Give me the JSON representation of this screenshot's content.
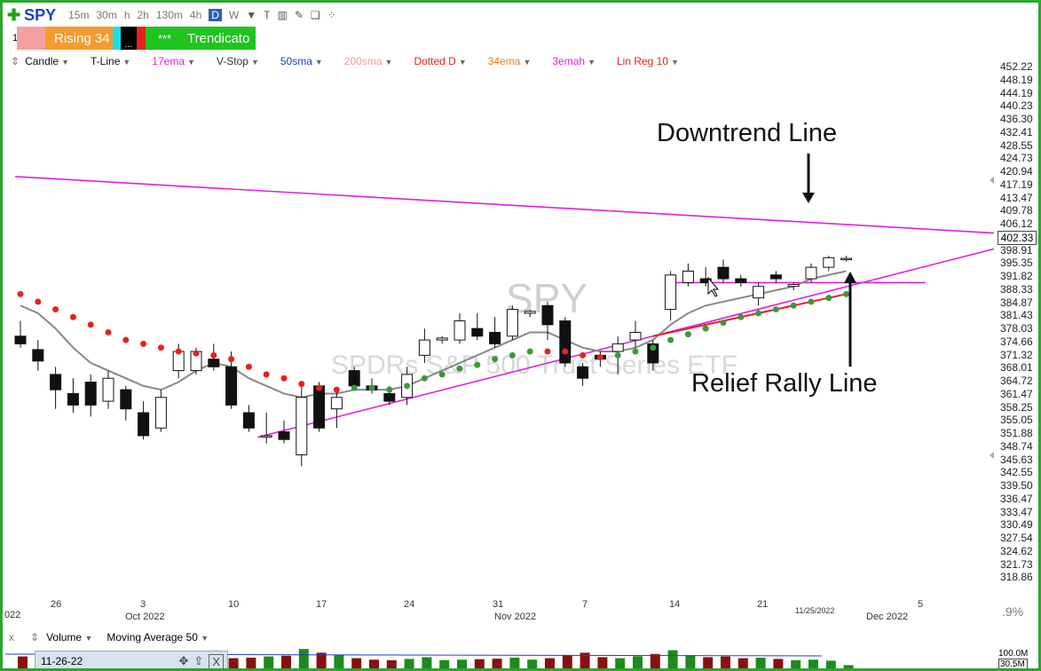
{
  "toolbar": {
    "symbol": "SPY",
    "timeframes": [
      "15m",
      "30m",
      "h",
      "2h",
      "130m",
      "4h",
      "D",
      "W"
    ],
    "active_timeframe": "D",
    "icons": [
      "chevron-down-icon",
      "text-icon",
      "bars-icon",
      "pencil-icon",
      "template-icon",
      "share-icon"
    ]
  },
  "markers": {
    "row_label": "1",
    "rising": "Rising 34",
    "dots": "...",
    "stars": "***",
    "trend": "Trendicato",
    "colors": {
      "pink": "#f4a0a0",
      "orange": "#f59a2e",
      "cyan": "#18e0e8",
      "black": "#000000",
      "red": "#e62020",
      "green": "#1fc41f"
    }
  },
  "studies": [
    {
      "label": "Candle",
      "color": "#111111"
    },
    {
      "label": "T-Line",
      "color": "#111111"
    },
    {
      "label": "17ema",
      "color": "#e020e0"
    },
    {
      "label": "V-Stop",
      "color": "#333333"
    },
    {
      "label": "50sma",
      "color": "#1a3fd0"
    },
    {
      "label": "200sma",
      "color": "#f29a9a"
    },
    {
      "label": "Dotted D",
      "color": "#e62020"
    },
    {
      "label": "34ema",
      "color": "#f08010"
    },
    {
      "label": "3emah",
      "color": "#e020e0"
    },
    {
      "label": "Lin Reg 10",
      "color": "#e62020"
    }
  ],
  "price_axis": [
    "452.22",
    "448.19",
    "444.19",
    "440.23",
    "436.30",
    "432.41",
    "428.55",
    "424.73",
    "420.94",
    "417.19",
    "413.47",
    "409.78",
    "406.12",
    "402.33",
    "398.91",
    "395.35",
    "391.82",
    "388.33",
    "384.87",
    "381.43",
    "378.03",
    "374.66",
    "371.32",
    "368.01",
    "364.72",
    "361.47",
    "358.25",
    "355.05",
    "351.88",
    "348.74",
    "345.63",
    "342.55",
    "339.50",
    "336.47",
    "333.47",
    "330.49",
    "327.54",
    "324.62",
    "321.73",
    "318.86"
  ],
  "last_price": "402.33",
  "watermark": {
    "symbol": "SPY",
    "name": "SPDRs S&P 500 Trust Series ETF"
  },
  "annotations": {
    "downtrend": "Downtrend Line",
    "relief": "Relief Rally Line"
  },
  "date_axis": {
    "days": [
      "26",
      "3",
      "10",
      "17",
      "24",
      "31",
      "7",
      "14",
      "21",
      "5"
    ],
    "months": [
      "Oct 2022",
      "Nov 2022",
      "Dec 2022"
    ],
    "edge": "022",
    "cursor_date": "11/25/2022",
    "pct": ".9%"
  },
  "volume": {
    "study": "Volume",
    "ma": "Moving Average 50",
    "axis_top": "100.0M",
    "axis_value": "30.5M",
    "date_input": "11-26-22"
  },
  "chart_data": {
    "type": "candlestick",
    "symbol": "SPY",
    "ylim": [
      318.86,
      452.22
    ],
    "candles": [
      {
        "o": 382,
        "h": 386,
        "l": 379,
        "c": 380
      },
      {
        "o": 378.5,
        "h": 381,
        "l": 373,
        "c": 375.5
      },
      {
        "o": 372,
        "h": 374,
        "l": 363,
        "c": 368
      },
      {
        "o": 367,
        "h": 371,
        "l": 362,
        "c": 364
      },
      {
        "o": 370,
        "h": 372,
        "l": 361,
        "c": 364
      },
      {
        "o": 365,
        "h": 373,
        "l": 363,
        "c": 371
      },
      {
        "o": 368,
        "h": 369,
        "l": 360,
        "c": 363
      },
      {
        "o": 362,
        "h": 365,
        "l": 355,
        "c": 356
      },
      {
        "o": 358,
        "h": 368,
        "l": 357,
        "c": 366
      },
      {
        "o": 373,
        "h": 380,
        "l": 371,
        "c": 378
      },
      {
        "o": 373,
        "h": 379,
        "l": 372,
        "c": 378
      },
      {
        "o": 376,
        "h": 380,
        "l": 373,
        "c": 374
      },
      {
        "o": 374,
        "h": 378,
        "l": 363,
        "c": 364
      },
      {
        "o": 362,
        "h": 364,
        "l": 357,
        "c": 358
      },
      {
        "o": 356,
        "h": 362,
        "l": 354,
        "c": 356
      },
      {
        "o": 357,
        "h": 360,
        "l": 354,
        "c": 355
      },
      {
        "o": 351,
        "h": 370,
        "l": 348,
        "c": 366
      },
      {
        "o": 369,
        "h": 370,
        "l": 357,
        "c": 358
      },
      {
        "o": 363,
        "h": 368,
        "l": 358,
        "c": 366
      },
      {
        "o": 373,
        "h": 374,
        "l": 368,
        "c": 369
      },
      {
        "o": 369,
        "h": 371,
        "l": 367,
        "c": 368
      },
      {
        "o": 367,
        "h": 369,
        "l": 364,
        "c": 365
      },
      {
        "o": 366,
        "h": 374,
        "l": 364,
        "c": 372
      },
      {
        "o": 377,
        "h": 384,
        "l": 375,
        "c": 381
      },
      {
        "o": 381,
        "h": 382,
        "l": 380,
        "c": 381.5
      },
      {
        "o": 381,
        "h": 388,
        "l": 380,
        "c": 386
      },
      {
        "o": 384,
        "h": 388,
        "l": 381,
        "c": 382
      },
      {
        "o": 383,
        "h": 387,
        "l": 379,
        "c": 380
      },
      {
        "o": 382,
        "h": 390,
        "l": 381,
        "c": 389
      },
      {
        "o": 388,
        "h": 389,
        "l": 387,
        "c": 388.5
      },
      {
        "o": 390,
        "h": 391,
        "l": 381,
        "c": 385
      },
      {
        "o": 386,
        "h": 387,
        "l": 374,
        "c": 375
      },
      {
        "o": 374,
        "h": 375,
        "l": 369,
        "c": 371
      },
      {
        "o": 377,
        "h": 378,
        "l": 374,
        "c": 376
      },
      {
        "o": 378,
        "h": 382,
        "l": 372,
        "c": 380
      },
      {
        "o": 381,
        "h": 386,
        "l": 379,
        "c": 383
      },
      {
        "o": 380,
        "h": 381,
        "l": 373,
        "c": 375
      },
      {
        "o": 389,
        "h": 399,
        "l": 386,
        "c": 398
      },
      {
        "o": 396,
        "h": 401,
        "l": 395,
        "c": 399
      },
      {
        "o": 397,
        "h": 400,
        "l": 395,
        "c": 396
      },
      {
        "o": 400,
        "h": 402,
        "l": 396,
        "c": 397
      },
      {
        "o": 397,
        "h": 398,
        "l": 395,
        "c": 396
      },
      {
        "o": 392,
        "h": 396,
        "l": 390,
        "c": 395
      },
      {
        "o": 398,
        "h": 399,
        "l": 396,
        "c": 397
      },
      {
        "o": 395,
        "h": 396,
        "l": 394,
        "c": 395.5
      },
      {
        "o": 397,
        "h": 401,
        "l": 396,
        "c": 400
      },
      {
        "o": 400,
        "h": 403,
        "l": 399,
        "c": 402.5
      },
      {
        "o": 402,
        "h": 403,
        "l": 401.5,
        "c": 402.33
      }
    ],
    "t_line": [
      390,
      388,
      384,
      379,
      375,
      373,
      371,
      369,
      368,
      370,
      373,
      375,
      374,
      371,
      369,
      367,
      366,
      367,
      367,
      368,
      368,
      368,
      369,
      371,
      373,
      375,
      377,
      379,
      381,
      383,
      383,
      381,
      379,
      378,
      378,
      379,
      381,
      385,
      388,
      390,
      391,
      392,
      393,
      394,
      395,
      397,
      398,
      399
    ],
    "v_stop": [
      {
        "i": 0,
        "y": 393,
        "color": "#e62020"
      },
      {
        "i": 1,
        "y": 391,
        "color": "#e62020"
      },
      {
        "i": 2,
        "y": 389,
        "color": "#e62020"
      },
      {
        "i": 3,
        "y": 387,
        "color": "#e62020"
      },
      {
        "i": 4,
        "y": 385,
        "color": "#e62020"
      },
      {
        "i": 5,
        "y": 383,
        "color": "#e62020"
      },
      {
        "i": 6,
        "y": 381,
        "color": "#e62020"
      },
      {
        "i": 7,
        "y": 380,
        "color": "#e62020"
      },
      {
        "i": 8,
        "y": 379,
        "color": "#e62020"
      },
      {
        "i": 9,
        "y": 378,
        "color": "#e62020"
      },
      {
        "i": 10,
        "y": 377.5,
        "color": "#e62020"
      },
      {
        "i": 11,
        "y": 377,
        "color": "#e62020"
      },
      {
        "i": 12,
        "y": 376,
        "color": "#e62020"
      },
      {
        "i": 13,
        "y": 374,
        "color": "#e62020"
      },
      {
        "i": 14,
        "y": 372,
        "color": "#e62020"
      },
      {
        "i": 15,
        "y": 371,
        "color": "#e62020"
      },
      {
        "i": 16,
        "y": 369.5,
        "color": "#e62020"
      },
      {
        "i": 17,
        "y": 368.5,
        "color": "#e62020"
      },
      {
        "i": 18,
        "y": 368,
        "color": "#e62020"
      },
      {
        "i": 19,
        "y": 368.5,
        "color": "#3a9a3a"
      },
      {
        "i": 20,
        "y": 368.5,
        "color": "#3a9a3a"
      },
      {
        "i": 21,
        "y": 368,
        "color": "#3a9a3a"
      },
      {
        "i": 22,
        "y": 369,
        "color": "#3a9a3a"
      },
      {
        "i": 23,
        "y": 371,
        "color": "#3a9a3a"
      },
      {
        "i": 24,
        "y": 372,
        "color": "#3a9a3a"
      },
      {
        "i": 25,
        "y": 373.5,
        "color": "#3a9a3a"
      },
      {
        "i": 26,
        "y": 374.5,
        "color": "#3a9a3a"
      },
      {
        "i": 27,
        "y": 376,
        "color": "#3a9a3a"
      },
      {
        "i": 28,
        "y": 377,
        "color": "#3a9a3a"
      },
      {
        "i": 29,
        "y": 378,
        "color": "#3a9a3a"
      },
      {
        "i": 30,
        "y": 378,
        "color": "#e62020"
      },
      {
        "i": 31,
        "y": 378,
        "color": "#e62020"
      },
      {
        "i": 32,
        "y": 377,
        "color": "#e62020"
      },
      {
        "i": 33,
        "y": 376.5,
        "color": "#e62020"
      },
      {
        "i": 34,
        "y": 377,
        "color": "#3a9a3a"
      },
      {
        "i": 35,
        "y": 378,
        "color": "#3a9a3a"
      },
      {
        "i": 36,
        "y": 379,
        "color": "#3a9a3a"
      },
      {
        "i": 37,
        "y": 381,
        "color": "#3a9a3a"
      },
      {
        "i": 38,
        "y": 382.5,
        "color": "#3a9a3a"
      },
      {
        "i": 39,
        "y": 384,
        "color": "#3a9a3a"
      },
      {
        "i": 40,
        "y": 385.5,
        "color": "#3a9a3a"
      },
      {
        "i": 41,
        "y": 387,
        "color": "#3a9a3a"
      },
      {
        "i": 42,
        "y": 388,
        "color": "#3a9a3a"
      },
      {
        "i": 43,
        "y": 389,
        "color": "#3a9a3a"
      },
      {
        "i": 44,
        "y": 390,
        "color": "#3a9a3a"
      },
      {
        "i": 45,
        "y": 391,
        "color": "#3a9a3a"
      },
      {
        "i": 46,
        "y": 392,
        "color": "#3a9a3a"
      },
      {
        "i": 47,
        "y": 393,
        "color": "#3a9a3a"
      }
    ],
    "downtrend_line": {
      "from": {
        "i": -0.3,
        "y": 423.7
      },
      "to": {
        "i": 56,
        "y": 408.8
      },
      "color": "#e020e0"
    },
    "relief_line": {
      "from": {
        "i": 13.5,
        "y": 355.6
      },
      "to": {
        "i": 56,
        "y": 405.5
      },
      "color": "#e020e0"
    },
    "resistance_line": {
      "from": {
        "i": 37,
        "y": 396
      },
      "to": {
        "i": 51.5,
        "y": 396
      },
      "color": "#e020e0"
    },
    "linreg_line": {
      "from": {
        "i": 36,
        "y": 382
      },
      "to": {
        "i": 47,
        "y": 393
      },
      "color": "#e62020"
    },
    "volumes": [
      55,
      40,
      45,
      42,
      50,
      38,
      48,
      60,
      52,
      45,
      40,
      42,
      48,
      50,
      55,
      58,
      85,
      70,
      60,
      48,
      42,
      40,
      45,
      52,
      40,
      42,
      44,
      46,
      50,
      42,
      48,
      60,
      70,
      52,
      48,
      56,
      65,
      80,
      60,
      52,
      55,
      48,
      50,
      45,
      40,
      42,
      38,
      20
    ],
    "volume_colors_up_green": true
  }
}
